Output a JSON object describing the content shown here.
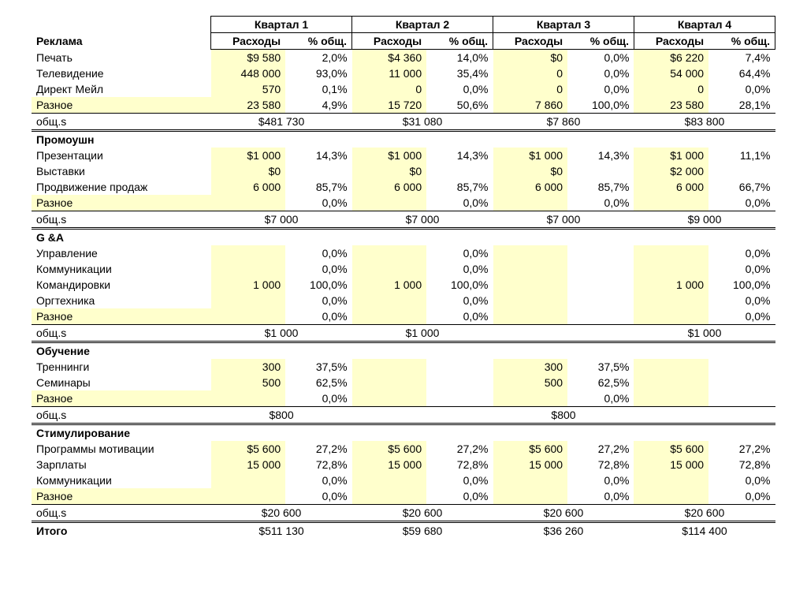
{
  "colors": {
    "background": "#ffffff",
    "text": "#000000",
    "highlight": "#ffffcc",
    "border": "#000000"
  },
  "font": {
    "family": "Arial",
    "size_pt": 10
  },
  "quarters": [
    "Квартал 1",
    "Квартал 2",
    "Квартал 3",
    "Квартал 4"
  ],
  "subheaders": {
    "value": "Расходы",
    "pct": "% общ."
  },
  "labels": {
    "section_total": "общ.s",
    "grand_total": "Итого"
  },
  "sections": [
    {
      "name": "Реклама",
      "rows": [
        {
          "label": "Печать",
          "hlLabel": false,
          "hlVal": true,
          "cells": [
            [
              "$9 580",
              "2,0%"
            ],
            [
              "$4 360",
              "14,0%"
            ],
            [
              "$0",
              "0,0%"
            ],
            [
              "$6 220",
              "7,4%"
            ]
          ]
        },
        {
          "label": "Телевидение",
          "hlLabel": false,
          "hlVal": true,
          "cells": [
            [
              "448 000",
              "93,0%"
            ],
            [
              "11 000",
              "35,4%"
            ],
            [
              "0",
              "0,0%"
            ],
            [
              "54 000",
              "64,4%"
            ]
          ]
        },
        {
          "label": "Директ Мейл",
          "hlLabel": false,
          "hlVal": true,
          "cells": [
            [
              "570",
              "0,1%"
            ],
            [
              "0",
              "0,0%"
            ],
            [
              "0",
              "0,0%"
            ],
            [
              "0",
              "0,0%"
            ]
          ]
        },
        {
          "label": "Разное",
          "hlLabel": true,
          "hlVal": true,
          "underline": true,
          "cells": [
            [
              "23 580",
              "4,9%"
            ],
            [
              "15 720",
              "50,6%"
            ],
            [
              "7 860",
              "100,0%"
            ],
            [
              "23 580",
              "28,1%"
            ]
          ]
        }
      ],
      "total": [
        "$481 730",
        "$31 080",
        "$7 860",
        "$83 800"
      ]
    },
    {
      "name": "Промоушн",
      "rows": [
        {
          "label": "Презентации",
          "hlLabel": false,
          "hlVal": true,
          "cells": [
            [
              "$1 000",
              "14,3%"
            ],
            [
              "$1 000",
              "14,3%"
            ],
            [
              "$1 000",
              "14,3%"
            ],
            [
              "$1 000",
              "11,1%"
            ]
          ]
        },
        {
          "label": "Выставки",
          "hlLabel": false,
          "hlVal": true,
          "cells": [
            [
              "$0",
              ""
            ],
            [
              "$0",
              ""
            ],
            [
              "$0",
              ""
            ],
            [
              "$2 000",
              ""
            ]
          ]
        },
        {
          "label": "Продвижение продаж",
          "hlLabel": false,
          "hlVal": true,
          "cells": [
            [
              "6 000",
              "85,7%"
            ],
            [
              "6 000",
              "85,7%"
            ],
            [
              "6 000",
              "85,7%"
            ],
            [
              "6 000",
              "66,7%"
            ]
          ]
        },
        {
          "label": "Разное",
          "hlLabel": true,
          "hlVal": true,
          "underline": true,
          "cells": [
            [
              "",
              "0,0%"
            ],
            [
              "",
              "0,0%"
            ],
            [
              "",
              "0,0%"
            ],
            [
              "",
              "0,0%"
            ]
          ]
        }
      ],
      "total": [
        "$7 000",
        "$7 000",
        "$7 000",
        "$9 000"
      ]
    },
    {
      "name": "G &A",
      "rows": [
        {
          "label": "Управление",
          "hlLabel": false,
          "hlVal": true,
          "cells": [
            [
              "",
              "0,0%"
            ],
            [
              "",
              "0,0%"
            ],
            [
              "",
              ""
            ],
            [
              "",
              "0,0%"
            ]
          ]
        },
        {
          "label": "Коммуникации",
          "hlLabel": false,
          "hlVal": true,
          "cells": [
            [
              "",
              "0,0%"
            ],
            [
              "",
              "0,0%"
            ],
            [
              "",
              ""
            ],
            [
              "",
              "0,0%"
            ]
          ]
        },
        {
          "label": "Командировки",
          "hlLabel": false,
          "hlVal": true,
          "cells": [
            [
              "1 000",
              "100,0%"
            ],
            [
              "1 000",
              "100,0%"
            ],
            [
              "",
              ""
            ],
            [
              "1 000",
              "100,0%"
            ]
          ]
        },
        {
          "label": "Оргтехника",
          "hlLabel": false,
          "hlVal": true,
          "cells": [
            [
              "",
              "0,0%"
            ],
            [
              "",
              "0,0%"
            ],
            [
              "",
              ""
            ],
            [
              "",
              "0,0%"
            ]
          ]
        },
        {
          "label": "Разное",
          "hlLabel": true,
          "hlVal": true,
          "underline": true,
          "cells": [
            [
              "",
              "0,0%"
            ],
            [
              "",
              "0,0%"
            ],
            [
              "",
              ""
            ],
            [
              "",
              "0,0%"
            ]
          ]
        }
      ],
      "total": [
        "$1 000",
        "$1 000",
        "",
        "$1 000"
      ]
    },
    {
      "name": "Обучение",
      "rows": [
        {
          "label": "Треннинги",
          "hlLabel": false,
          "hlVal": true,
          "cells": [
            [
              "300",
              "37,5%"
            ],
            [
              "",
              ""
            ],
            [
              "300",
              "37,5%"
            ],
            [
              "",
              ""
            ]
          ]
        },
        {
          "label": "Семинары",
          "hlLabel": false,
          "hlVal": true,
          "cells": [
            [
              "500",
              "62,5%"
            ],
            [
              "",
              ""
            ],
            [
              "500",
              "62,5%"
            ],
            [
              "",
              ""
            ]
          ]
        },
        {
          "label": "Разное",
          "hlLabel": true,
          "hlVal": true,
          "underline": true,
          "cells": [
            [
              "",
              "0,0%"
            ],
            [
              "",
              ""
            ],
            [
              "",
              "0,0%"
            ],
            [
              "",
              ""
            ]
          ]
        }
      ],
      "total": [
        "$800",
        "",
        "$800",
        ""
      ]
    },
    {
      "name": "Стимулирование",
      "rows": [
        {
          "label": "Программы мотивации",
          "hlLabel": false,
          "hlVal": true,
          "cells": [
            [
              "$5 600",
              "27,2%"
            ],
            [
              "$5 600",
              "27,2%"
            ],
            [
              "$5 600",
              "27,2%"
            ],
            [
              "$5 600",
              "27,2%"
            ]
          ]
        },
        {
          "label": "Зарплаты",
          "hlLabel": false,
          "hlVal": true,
          "cells": [
            [
              "15 000",
              "72,8%"
            ],
            [
              "15 000",
              "72,8%"
            ],
            [
              "15 000",
              "72,8%"
            ],
            [
              "15 000",
              "72,8%"
            ]
          ]
        },
        {
          "label": "Коммуникации",
          "hlLabel": false,
          "hlVal": true,
          "cells": [
            [
              "",
              "0,0%"
            ],
            [
              "",
              "0,0%"
            ],
            [
              "",
              "0,0%"
            ],
            [
              "",
              "0,0%"
            ]
          ]
        },
        {
          "label": "Разное",
          "hlLabel": true,
          "hlVal": true,
          "underline": true,
          "cells": [
            [
              "",
              "0,0%"
            ],
            [
              "",
              "0,0%"
            ],
            [
              "",
              "0,0%"
            ],
            [
              "",
              "0,0%"
            ]
          ]
        }
      ],
      "total": [
        "$20 600",
        "$20 600",
        "$20 600",
        "$20 600"
      ]
    }
  ],
  "grand_total": [
    "$511 130",
    "$59 680",
    "$36 260",
    "$114 400"
  ]
}
